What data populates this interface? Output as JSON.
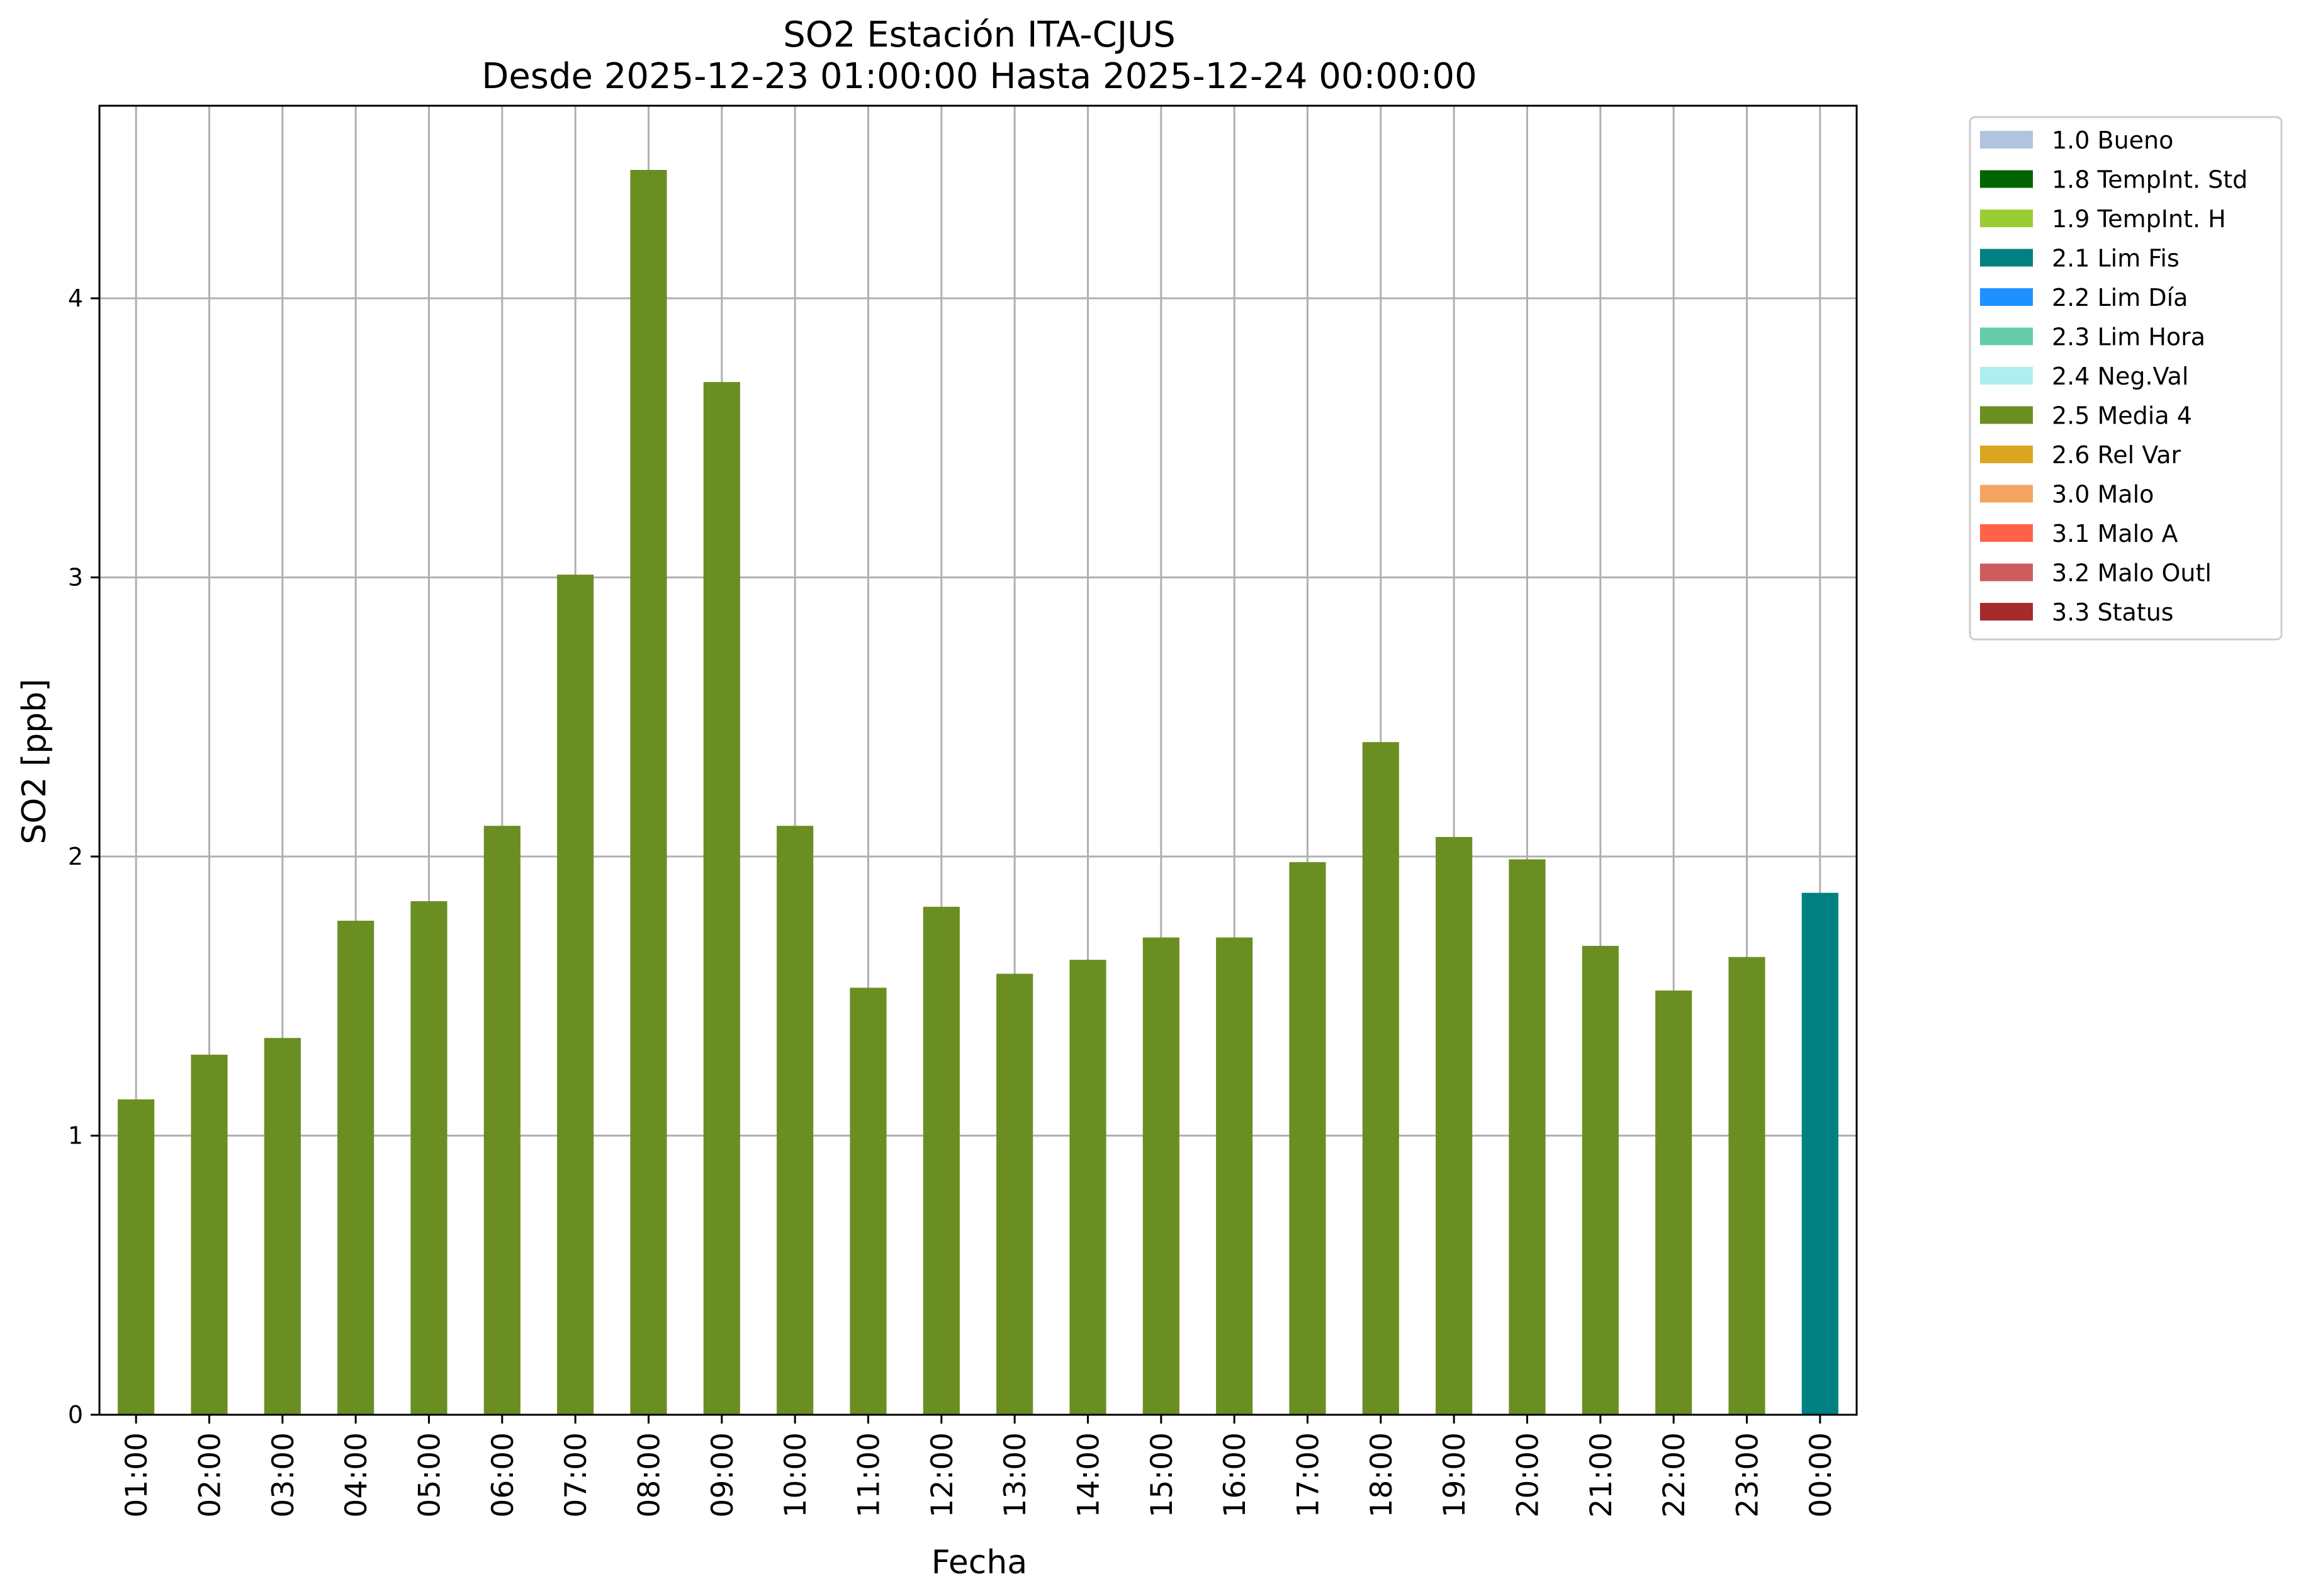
{
  "chart_data": {
    "type": "bar",
    "title": "SO2 Estación ITA-CJUS",
    "subtitle": "Desde 2025-12-23 01:00:00 Hasta 2025-12-24 00:00:00",
    "xlabel": "Fecha",
    "ylabel": "SO2 [ppb]",
    "ylim": [
      0,
      4.69
    ],
    "yticks": [
      0,
      1,
      2,
      3,
      4
    ],
    "grid": true,
    "legend_position": "outside top-right",
    "categories": [
      "01:00",
      "02:00",
      "03:00",
      "04:00",
      "05:00",
      "06:00",
      "07:00",
      "08:00",
      "09:00",
      "10:00",
      "11:00",
      "12:00",
      "13:00",
      "14:00",
      "15:00",
      "16:00",
      "17:00",
      "18:00",
      "19:00",
      "20:00",
      "21:00",
      "22:00",
      "23:00",
      "00:00"
    ],
    "values": [
      1.13,
      1.29,
      1.35,
      1.77,
      1.84,
      2.11,
      3.01,
      4.46,
      3.7,
      2.11,
      1.53,
      1.82,
      1.58,
      1.63,
      1.71,
      1.71,
      1.98,
      2.41,
      2.07,
      1.99,
      1.68,
      1.52,
      1.64,
      1.87
    ],
    "bar_flags": [
      "2.5 Media 4",
      "2.5 Media 4",
      "2.5 Media 4",
      "2.5 Media 4",
      "2.5 Media 4",
      "2.5 Media 4",
      "2.5 Media 4",
      "2.5 Media 4",
      "2.5 Media 4",
      "2.5 Media 4",
      "2.5 Media 4",
      "2.5 Media 4",
      "2.5 Media 4",
      "2.5 Media 4",
      "2.5 Media 4",
      "2.5 Media 4",
      "2.5 Media 4",
      "2.5 Media 4",
      "2.5 Media 4",
      "2.5 Media 4",
      "2.5 Media 4",
      "2.5 Media 4",
      "2.5 Media 4",
      "2.1 Lim Fis"
    ],
    "legend": [
      {
        "label": "1.0 Bueno",
        "color": "#b0c4de"
      },
      {
        "label": "1.8 TempInt. Std",
        "color": "#006400"
      },
      {
        "label": "1.9 TempInt. H",
        "color": "#9acd32"
      },
      {
        "label": "2.1 Lim Fis",
        "color": "#008080"
      },
      {
        "label": "2.2 Lim Día",
        "color": "#1e90ff"
      },
      {
        "label": "2.3 Lim Hora",
        "color": "#66cdaa"
      },
      {
        "label": "2.4 Neg.Val",
        "color": "#afeeee"
      },
      {
        "label": "2.5 Media 4",
        "color": "#6b8e23"
      },
      {
        "label": "2.6 Rel Var",
        "color": "#daa520"
      },
      {
        "label": "3.0 Malo",
        "color": "#f4a460"
      },
      {
        "label": "3.1 Malo A",
        "color": "#ff6347"
      },
      {
        "label": "3.2 Malo Outl",
        "color": "#cd5c5c"
      },
      {
        "label": "3.3 Status",
        "color": "#a52a2a"
      }
    ]
  }
}
